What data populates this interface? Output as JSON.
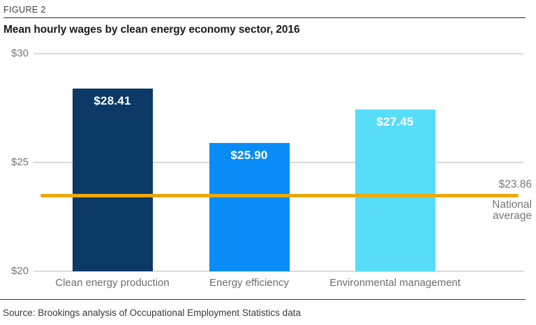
{
  "figure_label": "FIGURE 2",
  "title": "Mean hourly wages by clean energy economy sector, 2016",
  "source": "Source: Brookings analysis of Occupational Employment Statistics data",
  "chart_data": {
    "type": "bar",
    "title": "Mean hourly wages by clean energy economy sector, 2016",
    "categories": [
      "Clean energy production",
      "Energy efficiency",
      "Environmental management"
    ],
    "values": [
      28.41,
      25.9,
      27.45
    ],
    "value_labels": [
      "$28.41",
      "$25.90",
      "$27.45"
    ],
    "bar_colors": [
      "#0b3a67",
      "#0a8cf8",
      "#58ddf9"
    ],
    "xlabel": "",
    "ylabel": "",
    "ylim": [
      20,
      30
    ],
    "yticks": [
      {
        "value": 30,
        "label": "$30"
      },
      {
        "value": 25,
        "label": "$25"
      },
      {
        "value": 20,
        "label": "$20"
      }
    ],
    "grid": true,
    "legend": "none",
    "reference_line": {
      "value": 23.86,
      "label": "$23.86",
      "caption": "National average",
      "color": "#ebaa0b"
    }
  },
  "colors": {
    "background": "#ffffff",
    "gridline": "#dadadc",
    "axis_text": "#76777a",
    "title_text": "#1b1b1d",
    "source_text": "#39393b",
    "reference_line": "#ebaa0b"
  }
}
